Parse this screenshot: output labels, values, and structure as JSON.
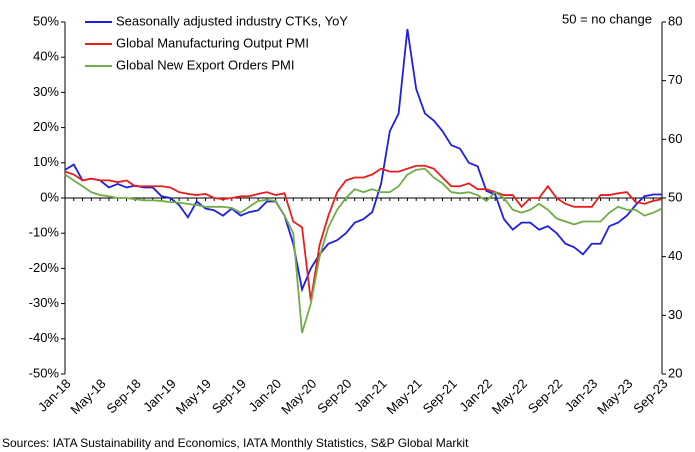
{
  "chart_data": {
    "type": "line",
    "annotations": [
      "50 = no change"
    ],
    "source": "Sources: IATA Sustainability and Economics, IATA Monthly Statistics, S&P Global Markit",
    "categories": [
      "Jan-18",
      null,
      null,
      null,
      "May-18",
      null,
      null,
      null,
      "Sep-18",
      null,
      null,
      null,
      "Jan-19",
      null,
      null,
      null,
      "May-19",
      null,
      null,
      null,
      "Sep-19",
      null,
      null,
      null,
      "Jan-20",
      null,
      null,
      null,
      "May-20",
      null,
      null,
      null,
      "Sep-20",
      null,
      null,
      null,
      "Jan-21",
      null,
      null,
      null,
      "May-21",
      null,
      null,
      null,
      "Sep-21",
      null,
      null,
      null,
      "Jan-22",
      null,
      null,
      null,
      "May-22",
      null,
      null,
      null,
      "Sep-22",
      null,
      null,
      null,
      "Jan-23",
      null,
      null,
      null,
      "May-23",
      null,
      null,
      null,
      "Sep-23"
    ],
    "ylim": [
      -50,
      50
    ],
    "yticks": [
      {
        "value": -50,
        "label": "-50%"
      },
      {
        "value": -40,
        "label": "-40%"
      },
      {
        "value": -30,
        "label": "-30%"
      },
      {
        "value": -20,
        "label": "-20%"
      },
      {
        "value": -10,
        "label": "-10%"
      },
      {
        "value": 0,
        "label": "0%"
      },
      {
        "value": 10,
        "label": "10%"
      },
      {
        "value": 20,
        "label": "20%"
      },
      {
        "value": 30,
        "label": "30%"
      },
      {
        "value": 40,
        "label": "40%"
      },
      {
        "value": 50,
        "label": "50%"
      }
    ],
    "y2lim": [
      20,
      80
    ],
    "y2ticks": [
      20,
      30,
      40,
      50,
      60,
      70,
      80
    ],
    "legend": "upper left",
    "series": [
      {
        "name": "Seasonally adjusted industry CTKs, YoY",
        "color": "#1f1fe0",
        "values": [
          8,
          9.5,
          5,
          5.5,
          5,
          3,
          4,
          3,
          3.5,
          3,
          3,
          0.5,
          0,
          -2,
          -5.5,
          -1,
          -3,
          -3.5,
          -5,
          -3,
          -5,
          -4,
          -3.5,
          -1,
          -1,
          -5,
          -13,
          -26,
          -20,
          -16,
          -13,
          -12,
          -10,
          -7,
          -6,
          -4,
          4,
          19,
          24,
          48,
          31,
          24,
          22,
          19,
          15,
          14,
          10,
          9,
          2,
          1,
          -6,
          -9,
          -7,
          -7,
          -9,
          -8,
          -10,
          -13,
          -14,
          -16,
          -13,
          -13,
          -8,
          -7,
          -5,
          -2,
          0.5,
          1,
          1
        ]
      },
      {
        "name": "Global Manufacturing Output PMI",
        "color": "#e81e1e",
        "axis": "y2",
        "values": [
          54.5,
          54,
          53,
          53.3,
          53,
          53,
          52.7,
          53,
          52,
          52,
          52,
          52,
          51.8,
          51,
          50.7,
          50.5,
          50.7,
          50,
          49.8,
          50,
          50.3,
          50.3,
          50.7,
          51,
          50.5,
          50.8,
          46,
          45,
          32.5,
          42,
          47,
          51,
          53,
          53.5,
          53.5,
          54,
          55,
          54.5,
          54.5,
          55,
          55.5,
          55.5,
          55,
          53.5,
          52,
          52,
          52.5,
          51.5,
          51.5,
          51,
          50.5,
          50.5,
          48.5,
          50,
          50,
          52,
          50,
          49,
          48.5,
          48.5,
          48.5,
          50.5,
          50.5,
          50.8,
          51,
          49.3,
          49,
          49.5,
          49.8
        ]
      },
      {
        "name": "Global New Export Orders PMI",
        "color": "#70ad47",
        "axis": "y2",
        "values": [
          54,
          53,
          52,
          51,
          50.5,
          50.3,
          50,
          50,
          49.8,
          49.6,
          49.6,
          49.5,
          49.3,
          49.2,
          49,
          48.8,
          48.5,
          48.5,
          48.5,
          48.3,
          47.5,
          48.5,
          49.5,
          49.7,
          49.5,
          47,
          44,
          27,
          32,
          40,
          45,
          48,
          50,
          51.5,
          51,
          51.5,
          51,
          51,
          52,
          54,
          54.8,
          55,
          53.5,
          52.5,
          51,
          50.8,
          51,
          50.5,
          49.5,
          51,
          50,
          48,
          47.5,
          48,
          49,
          48,
          46.5,
          46,
          45.5,
          46,
          46,
          46,
          47.5,
          48.5,
          48,
          48,
          47,
          47.5,
          48.2
        ]
      }
    ]
  }
}
